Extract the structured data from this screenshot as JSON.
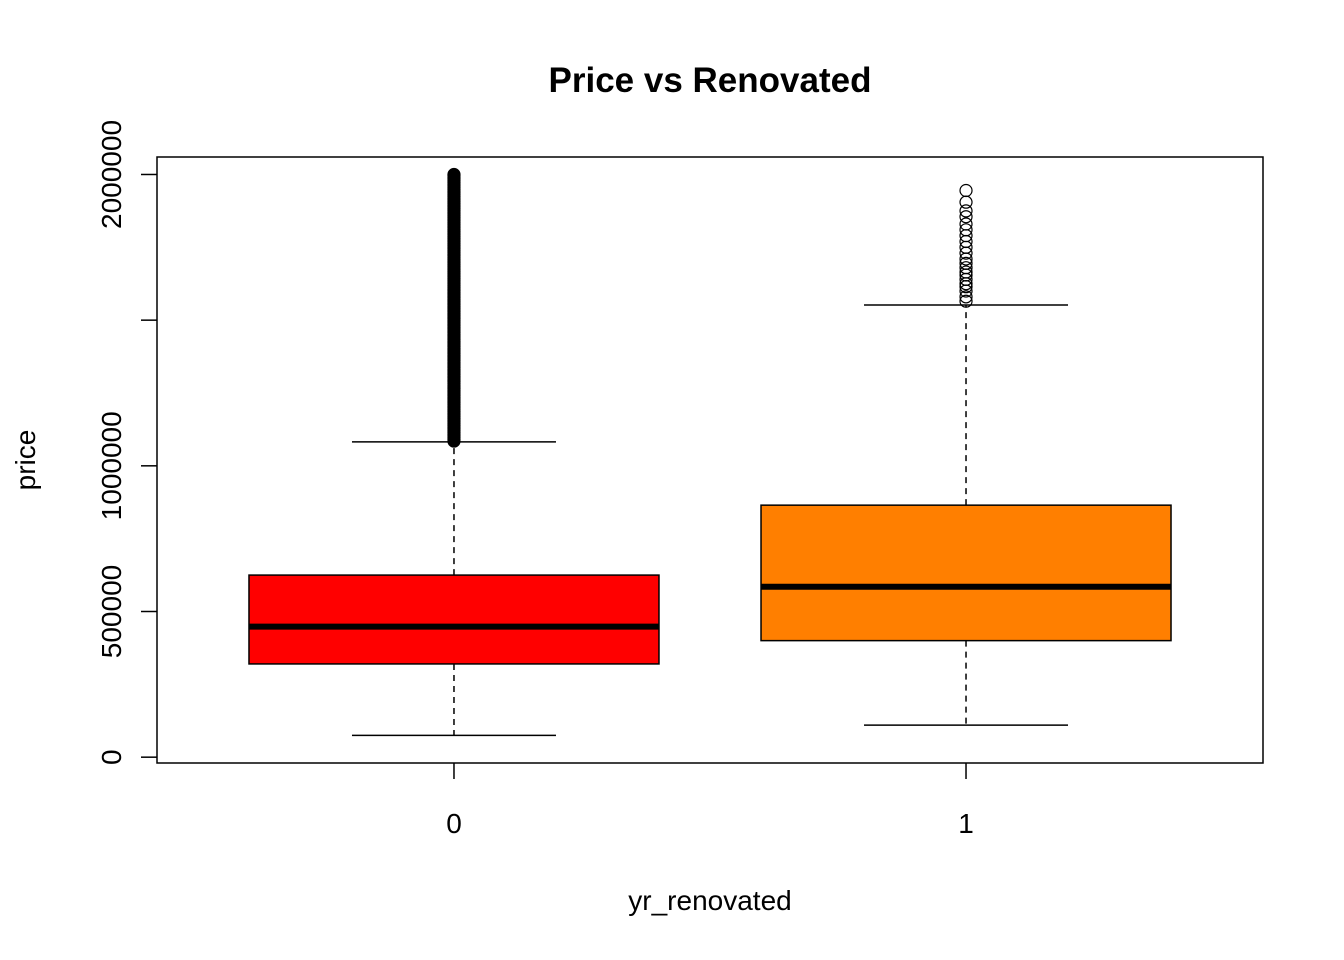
{
  "chart_data": {
    "type": "boxplot",
    "title": "Price vs Renovated",
    "xlabel": "yr_renovated",
    "ylabel": "price",
    "categories": [
      "0",
      "1"
    ],
    "ylim": [
      -20000,
      2060000
    ],
    "yticks": [
      {
        "value": 0,
        "label": "0"
      },
      {
        "value": 500000,
        "label": "500000"
      },
      {
        "value": 1000000,
        "label": "1000000"
      },
      {
        "value": 1500000,
        "label": ""
      },
      {
        "value": 2000000,
        "label": "2000000"
      }
    ],
    "boxes": [
      {
        "category": "0",
        "color": "#ff0000",
        "whisker_low": 75000,
        "q1": 320000,
        "median": 448000,
        "q3": 625000,
        "whisker_high": 1082000,
        "outliers_range": [
          1085000,
          2000000
        ]
      },
      {
        "category": "1",
        "color": "#ff7f00",
        "whisker_low": 110000,
        "q1": 400000,
        "median": 585000,
        "q3": 865000,
        "whisker_high": 1552000,
        "outliers": [
          1565000,
          1580000,
          1600000,
          1615000,
          1625000,
          1640000,
          1655000,
          1665000,
          1680000,
          1695000,
          1710000,
          1730000,
          1750000,
          1770000,
          1790000,
          1810000,
          1830000,
          1855000,
          1875000,
          1905000,
          1945000
        ]
      }
    ],
    "grid": false,
    "legend": "none"
  }
}
